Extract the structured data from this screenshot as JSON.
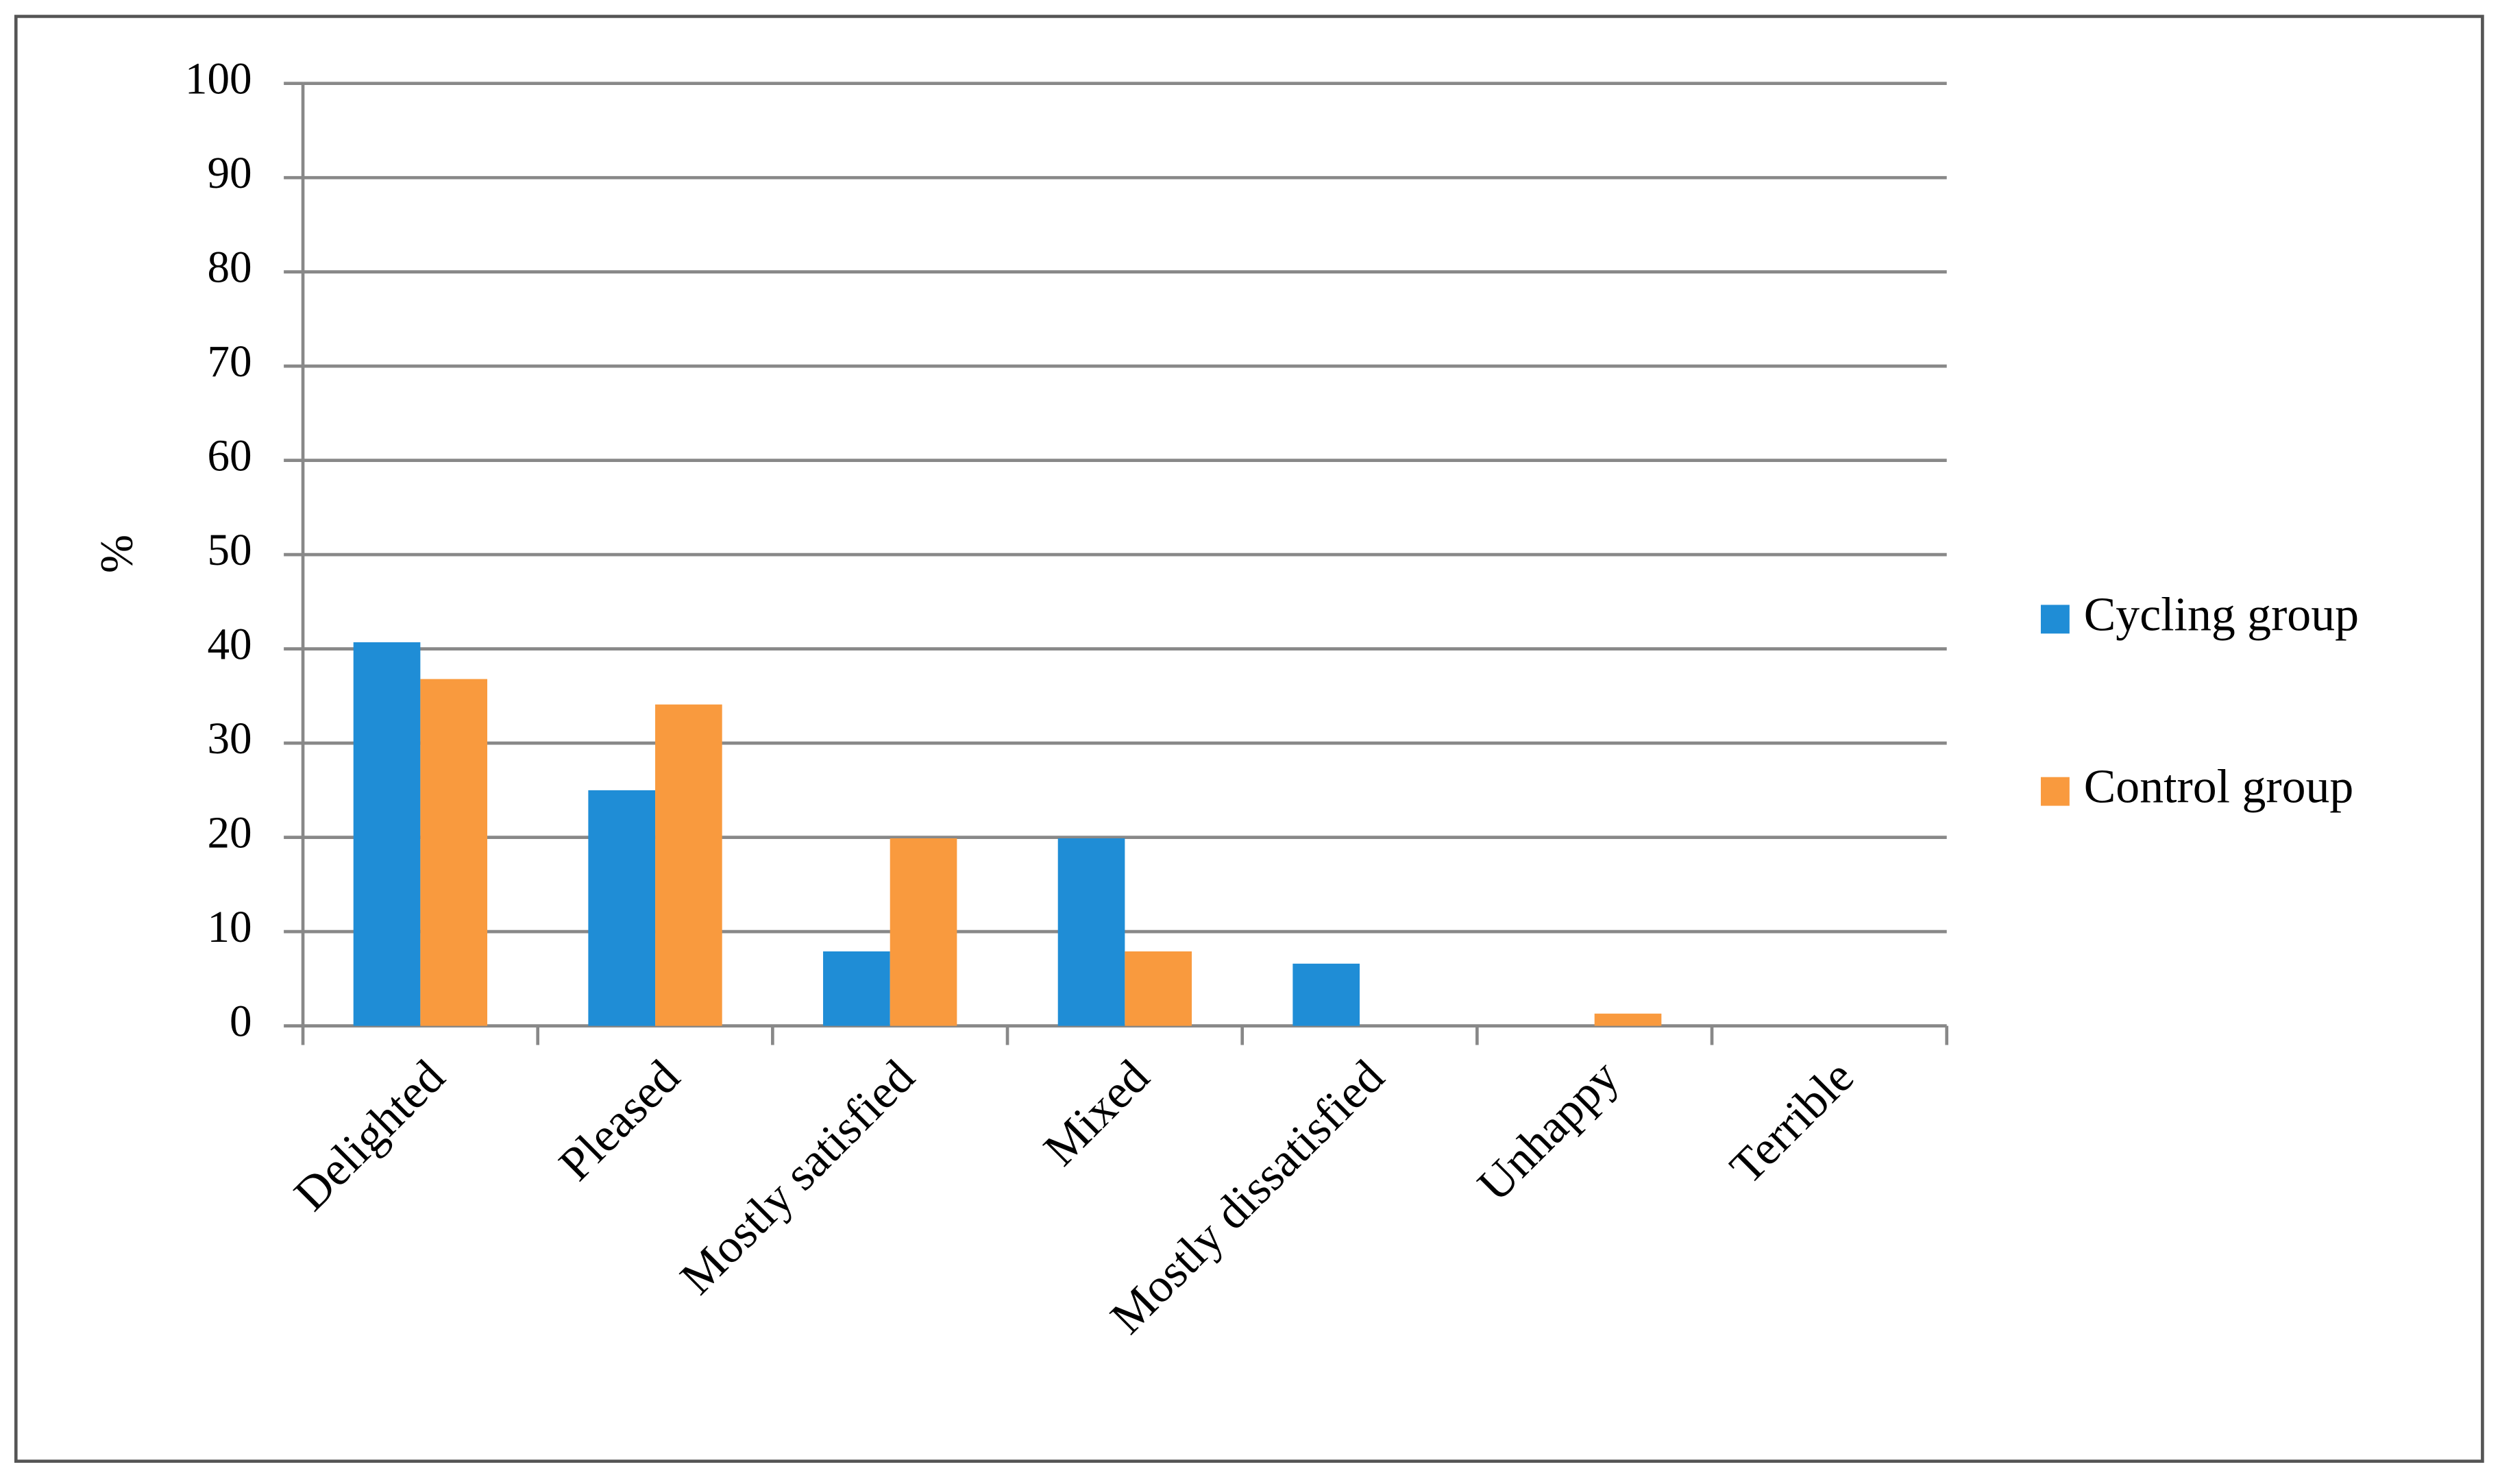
{
  "chart_data": {
    "type": "bar",
    "y_label": "%",
    "categories": [
      "Delighted",
      "Pleased",
      "Mostly satisfied",
      "Mixed",
      "Mostly dissatisfied",
      "Unhappy",
      "Terrible"
    ],
    "series": [
      {
        "name": "Cycling group",
        "color": "#1f8dd6",
        "values": [
          40.7,
          25,
          7.9,
          19.9,
          6.6,
          0,
          0
        ]
      },
      {
        "name": "Control group",
        "color": "#f99a3e",
        "values": [
          36.8,
          34.1,
          19.9,
          7.9,
          0,
          1.3,
          0
        ]
      }
    ],
    "ylim": [
      0,
      100
    ],
    "yticks": [
      0,
      10,
      20,
      30,
      40,
      50,
      60,
      70,
      80,
      90,
      100
    ],
    "grid": true,
    "legend": "right"
  }
}
